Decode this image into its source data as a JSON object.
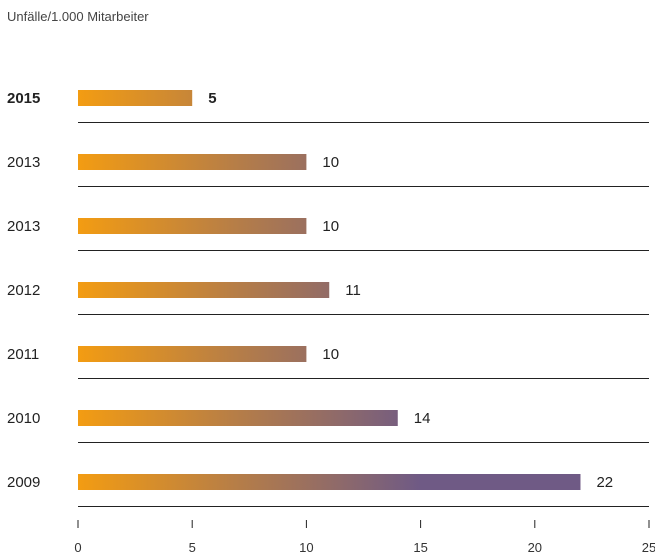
{
  "chart_data": {
    "type": "bar",
    "orientation": "horizontal",
    "subtitle": "Unfälle/1.000 Mitarbeiter",
    "categories": [
      "2015",
      "2013",
      "2013",
      "2012",
      "2011",
      "2010",
      "2009"
    ],
    "values": [
      5,
      10,
      10,
      11,
      10,
      14,
      22
    ],
    "highlight_index": 0,
    "xlim": [
      0,
      25
    ],
    "xticks": [
      0,
      5,
      10,
      15,
      20,
      25
    ],
    "grid": false,
    "colors": {
      "gradient_start": "#f39c12",
      "gradient_end": "#6f5a85",
      "axis": "#222222"
    }
  }
}
